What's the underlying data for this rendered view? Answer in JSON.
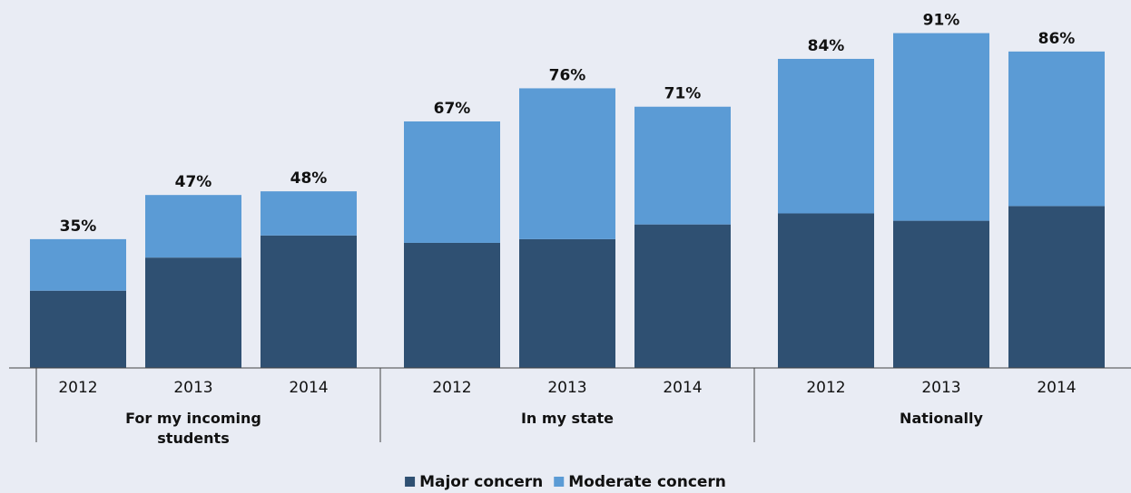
{
  "chart_data": {
    "type": "stacked_bar",
    "categories": [
      "2012",
      "2013",
      "2014",
      "2012",
      "2013",
      "2014",
      "2012",
      "2013",
      "2014"
    ],
    "groups": [
      "For my incoming students",
      "In my state",
      "Nationally"
    ],
    "series": [
      {
        "name": "Major concern",
        "color": "#2f5072",
        "values": [
          21,
          30,
          36,
          34,
          35,
          39,
          42,
          40,
          44
        ]
      },
      {
        "name": "Moderate concern",
        "color": "#5b9bd5",
        "values": [
          14,
          17,
          12,
          33,
          41,
          32,
          42,
          51,
          42
        ]
      }
    ],
    "total_labels": [
      "35%",
      "47%",
      "48%",
      "67%",
      "76%",
      "71%",
      "84%",
      "91%",
      "86%"
    ],
    "ylim": [
      0,
      100
    ]
  }
}
